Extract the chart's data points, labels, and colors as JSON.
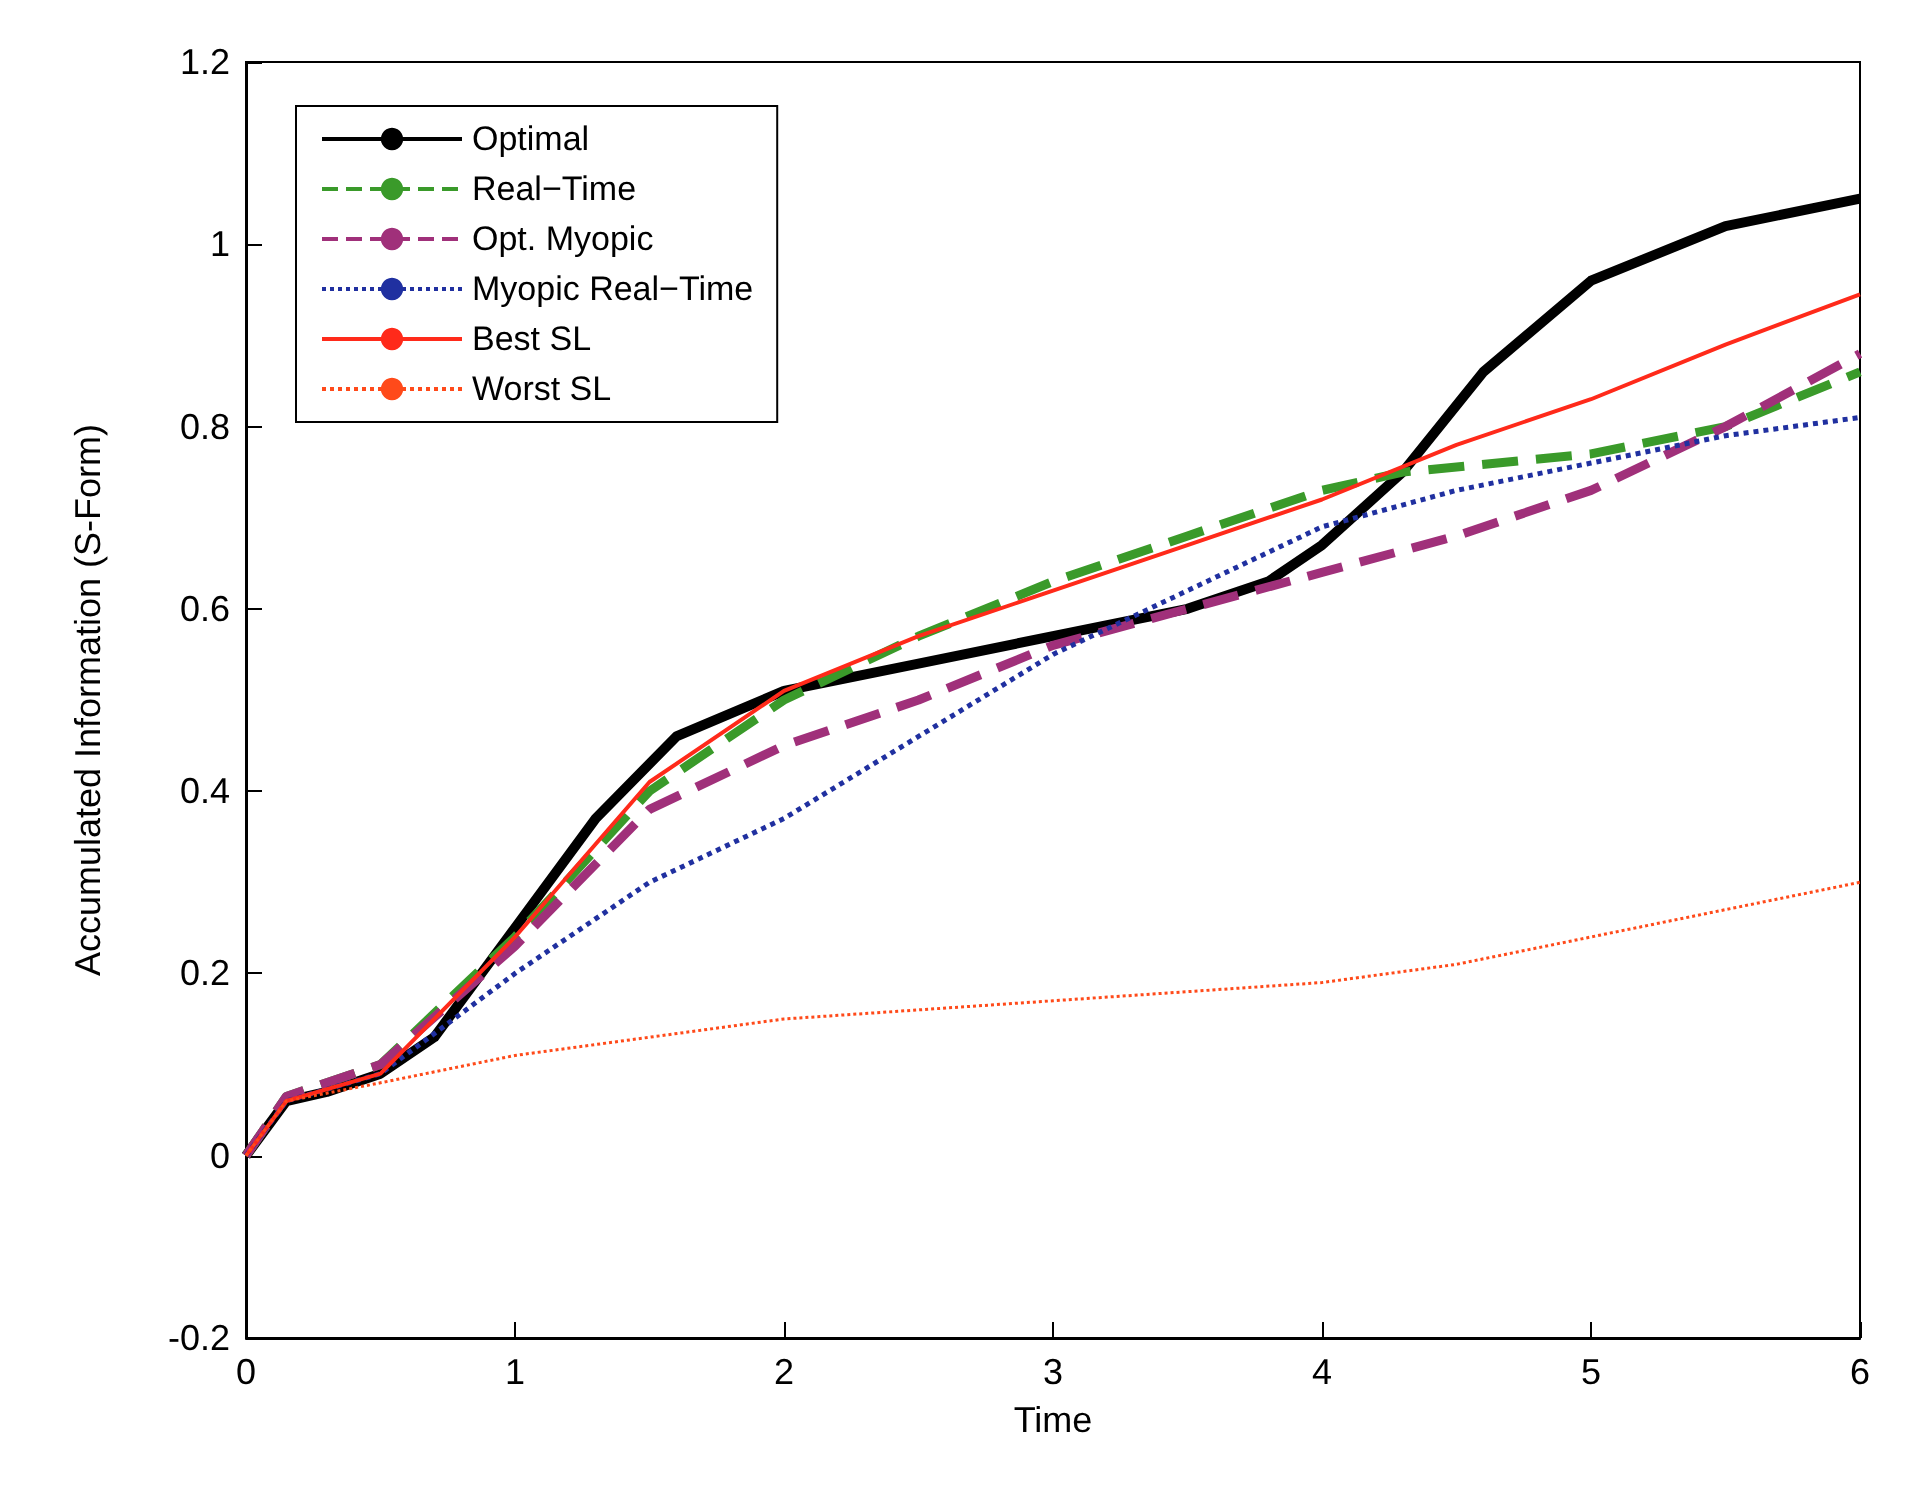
{
  "chart_data": {
    "type": "line",
    "xlabel": "Time",
    "ylabel": "Accumulated Information (S-Form)",
    "xlim": [
      0,
      6
    ],
    "ylim": [
      -0.2,
      1.2
    ],
    "xticks": [
      0,
      1,
      2,
      3,
      4,
      5,
      6
    ],
    "yticks": [
      -0.2,
      0,
      0.2,
      0.4,
      0.6,
      0.8,
      1,
      1.2
    ],
    "grid": false,
    "legend": "top left",
    "marker": "none",
    "series": [
      {
        "name": "Optimal",
        "color": "#000000",
        "line_style": "solid",
        "x": [
          0,
          0.15,
          0.3,
          0.5,
          0.7,
          1,
          1.3,
          1.6,
          2,
          2.5,
          3,
          3.5,
          3.8,
          4,
          4.3,
          4.6,
          5,
          5.5,
          6
        ],
        "values": [
          0,
          0.06,
          0.07,
          0.09,
          0.13,
          0.25,
          0.37,
          0.46,
          0.51,
          0.54,
          0.57,
          0.6,
          0.63,
          0.67,
          0.75,
          0.86,
          0.96,
          1.02,
          1.05
        ]
      },
      {
        "name": "Real−Time",
        "color": "#3a9a2a",
        "line_style": "dashed",
        "x": [
          0,
          0.15,
          0.5,
          1,
          1.5,
          2,
          2.5,
          3,
          3.5,
          4,
          4.3,
          5,
          5.5,
          6
        ],
        "values": [
          0,
          0.065,
          0.1,
          0.24,
          0.4,
          0.5,
          0.57,
          0.63,
          0.68,
          0.73,
          0.75,
          0.77,
          0.8,
          0.86
        ]
      },
      {
        "name": "Opt. Myopic",
        "color": "#a0307a",
        "line_style": "dashed",
        "x": [
          0,
          0.15,
          0.5,
          1,
          1.5,
          2,
          2.5,
          3,
          3.5,
          4,
          4.5,
          5,
          5.5,
          6
        ],
        "values": [
          0,
          0.065,
          0.1,
          0.23,
          0.38,
          0.45,
          0.5,
          0.56,
          0.6,
          0.64,
          0.68,
          0.73,
          0.8,
          0.88
        ]
      },
      {
        "name": "Myopic Real−Time",
        "color": "#2030a0",
        "line_style": "dotted",
        "x": [
          0,
          0.15,
          0.5,
          1,
          1.5,
          2,
          2.5,
          3,
          3.5,
          4,
          4.5,
          5,
          5.5,
          6
        ],
        "values": [
          0,
          0.06,
          0.09,
          0.2,
          0.3,
          0.37,
          0.46,
          0.55,
          0.62,
          0.69,
          0.73,
          0.76,
          0.79,
          0.81
        ]
      },
      {
        "name": "Best SL",
        "color": "#ff2a1a",
        "line_style": "solid",
        "x": [
          0,
          0.15,
          0.5,
          1,
          1.5,
          2,
          2.5,
          3,
          3.5,
          4,
          4.5,
          5,
          5.5,
          6
        ],
        "values": [
          0,
          0.06,
          0.09,
          0.24,
          0.41,
          0.51,
          0.57,
          0.62,
          0.67,
          0.72,
          0.78,
          0.83,
          0.89,
          0.945
        ]
      },
      {
        "name": "Worst SL",
        "color": "#ff4a1a",
        "line_style": "dotted",
        "x": [
          0,
          0.15,
          0.5,
          1,
          2,
          3,
          4,
          4.5,
          5,
          5.5,
          6
        ],
        "values": [
          0,
          0.06,
          0.08,
          0.11,
          0.15,
          0.17,
          0.19,
          0.21,
          0.24,
          0.27,
          0.3
        ]
      }
    ]
  }
}
